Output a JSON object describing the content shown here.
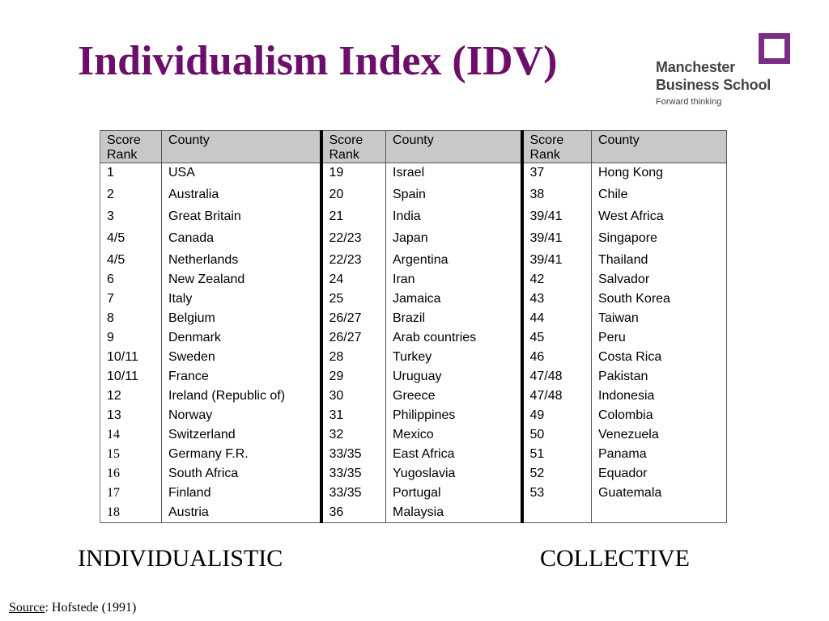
{
  "slide": {
    "title": "Individualism Index (IDV)",
    "title_color": "#6b0f6b"
  },
  "logo": {
    "line1": "Manchester",
    "line2": "Business School",
    "tagline": "Forward thinking",
    "mark_color": "#7a2c86",
    "mark_icon": "square-outline-icon"
  },
  "table": {
    "headers": [
      [
        "Score",
        "Rank"
      ],
      "County",
      [
        "Score",
        "Rank"
      ],
      "County",
      [
        "Score",
        "Rank"
      ],
      "County"
    ],
    "rows": [
      [
        "1",
        "USA",
        "19",
        "Israel",
        "37",
        "Hong Kong"
      ],
      [
        "2",
        "Australia",
        "20",
        "Spain",
        "38",
        "Chile"
      ],
      [
        "3",
        "Great Britain",
        "21",
        "India",
        "39/41",
        "West Africa"
      ],
      [
        "4/5",
        "Canada",
        "22/23",
        "Japan",
        "39/41",
        "Singapore"
      ],
      [
        "4/5",
        "Netherlands",
        "22/23",
        "Argentina",
        "39/41",
        "Thailand"
      ],
      [
        "6",
        "New Zealand",
        "24",
        "Iran",
        "42",
        "Salvador"
      ],
      [
        "7",
        "Italy",
        "25",
        "Jamaica",
        "43",
        "South Korea"
      ],
      [
        "8",
        "Belgium",
        "26/27",
        "Brazil",
        "44",
        "Taiwan"
      ],
      [
        "9",
        "Denmark",
        "26/27",
        "Arab countries",
        "45",
        "Peru"
      ],
      [
        "10/11",
        "Sweden",
        "28",
        "Turkey",
        "46",
        "Costa Rica"
      ],
      [
        "10/11",
        "France",
        "29",
        "Uruguay",
        "47/48",
        "Pakistan"
      ],
      [
        "12",
        "Ireland (Republic of)",
        "30",
        "Greece",
        "47/48",
        "Indonesia"
      ],
      [
        "13",
        "Norway",
        "31",
        "Philippines",
        "49",
        "Colombia"
      ],
      [
        "14",
        "Switzerland",
        "32",
        "Mexico",
        "50",
        "Venezuela"
      ],
      [
        "15",
        "Germany F.R.",
        "33/35",
        "East Africa",
        "51",
        "Panama"
      ],
      [
        "16",
        "South Africa",
        "33/35",
        "Yugoslavia",
        "52",
        "Equador"
      ],
      [
        "17",
        "Finland",
        "33/35",
        "Portugal",
        "53",
        "Guatemala"
      ],
      [
        "18",
        "Austria",
        "36",
        "Malaysia",
        "",
        ""
      ]
    ],
    "header_bg": "#c8c8c8"
  },
  "labels": {
    "left": "INDIVIDUALISTIC",
    "right": "COLLECTIVE"
  },
  "source": {
    "key": "Source",
    "value": ": Hofstede (1991)"
  }
}
